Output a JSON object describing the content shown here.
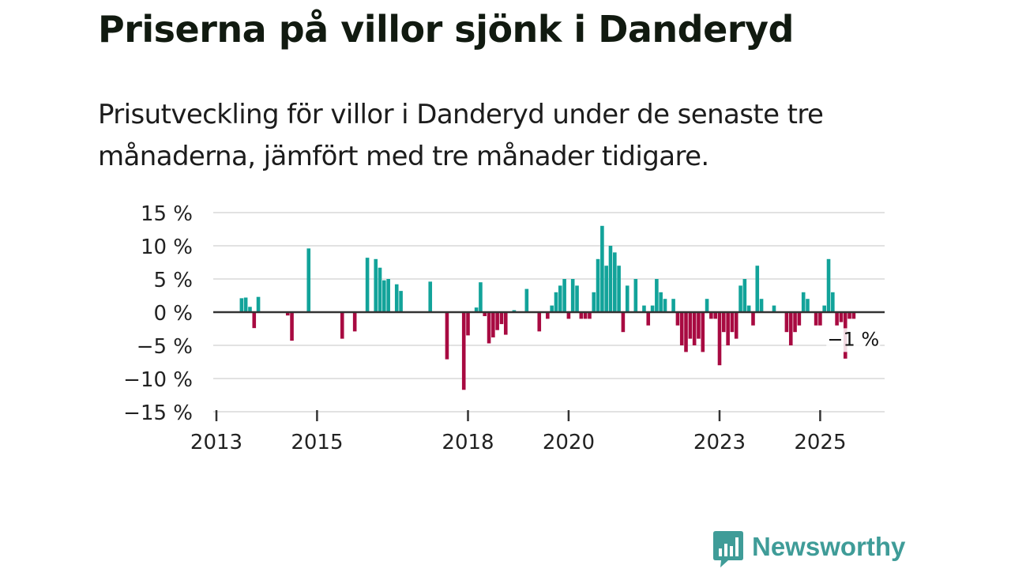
{
  "header": {
    "title": "Priserna på villor sjönk i Danderyd",
    "subtitle": "Prisutveckling för villor i Danderyd under de senaste tre månaderna, jämfört med tre månader tidigare."
  },
  "brand": {
    "name": "Newsworthy",
    "color": "#3f9c98"
  },
  "colors": {
    "positive": "#12a39a",
    "negative": "#a80a41",
    "grid": "#d9d9d9",
    "zero": "#333333"
  },
  "chart_data": {
    "type": "bar",
    "title": "Priserna på villor sjönk i Danderyd",
    "xlabel": "",
    "ylabel": "",
    "ylim": [
      -15,
      15
    ],
    "y_ticks": [
      15,
      10,
      5,
      0,
      -5,
      -10,
      -15
    ],
    "y_tick_labels": [
      "15 %",
      "10 %",
      "5 %",
      "0 %",
      "−5 %",
      "−10 %",
      "−15 %"
    ],
    "x_ticks": [
      2013,
      2015,
      2018,
      2020,
      2023,
      2025
    ],
    "x_tick_labels": [
      "2013",
      "2015",
      "2018",
      "2020",
      "2023",
      "2025"
    ],
    "x_range": [
      2013,
      2026.3
    ],
    "grid": true,
    "annotation": {
      "label": "−1 %",
      "x": 2025.5,
      "value": -1
    },
    "x": [
      2013.5,
      2013.583,
      2013.667,
      2013.75,
      2013.833,
      2014.417,
      2014.5,
      2014.833,
      2015.5,
      2015.75,
      2016.0,
      2016.167,
      2016.25,
      2016.333,
      2016.417,
      2016.583,
      2016.667,
      2017.25,
      2017.583,
      2017.917,
      2018.0,
      2018.167,
      2018.25,
      2018.333,
      2018.417,
      2018.5,
      2018.583,
      2018.667,
      2018.75,
      2018.917,
      2019.167,
      2019.417,
      2019.583,
      2019.667,
      2019.75,
      2019.833,
      2019.917,
      2020.0,
      2020.083,
      2020.167,
      2020.25,
      2020.333,
      2020.417,
      2020.5,
      2020.583,
      2020.667,
      2020.75,
      2020.833,
      2020.917,
      2021.0,
      2021.083,
      2021.167,
      2021.333,
      2021.5,
      2021.583,
      2021.667,
      2021.75,
      2021.833,
      2021.917,
      2022.083,
      2022.167,
      2022.25,
      2022.333,
      2022.417,
      2022.5,
      2022.583,
      2022.667,
      2022.75,
      2022.833,
      2022.917,
      2023.0,
      2023.083,
      2023.167,
      2023.25,
      2023.333,
      2023.417,
      2023.5,
      2023.583,
      2023.667,
      2023.75,
      2023.833,
      2024.083,
      2024.333,
      2024.417,
      2024.5,
      2024.583,
      2024.667,
      2024.75,
      2024.917,
      2025.0,
      2025.083,
      2025.167,
      2025.25,
      2025.333,
      2025.417,
      2025.5,
      2025.583,
      2025.667
    ],
    "values": [
      2.1,
      2.2,
      0.8,
      -2.4,
      2.3,
      -0.5,
      -4.3,
      9.6,
      -4.0,
      -2.9,
      8.2,
      8.0,
      6.7,
      4.8,
      5.0,
      4.2,
      3.2,
      4.6,
      -7.1,
      -11.7,
      -3.5,
      0.7,
      4.5,
      -0.6,
      -4.7,
      -3.8,
      -2.7,
      -1.8,
      -3.4,
      0.3,
      3.5,
      -2.9,
      -1.0,
      1.0,
      3.0,
      4.0,
      5.0,
      -1.0,
      5.0,
      4.0,
      -1.0,
      -1.0,
      -1.0,
      3.0,
      8.0,
      13.0,
      7.0,
      10.0,
      9.0,
      7.0,
      -3.0,
      4.0,
      5.0,
      1.0,
      -2.0,
      1.0,
      5.0,
      3.0,
      2.0,
      2.0,
      -2.0,
      -5.0,
      -6.0,
      -4.0,
      -5.0,
      -4.0,
      -6.0,
      2.0,
      -1.0,
      -1.0,
      -8.0,
      -3.0,
      -5.0,
      -3.0,
      -4.0,
      4.0,
      5.0,
      1.0,
      -2.0,
      7.0,
      2.0,
      1.0,
      -3.0,
      -5.0,
      -3.0,
      -2.0,
      3.0,
      2.0,
      -2.0,
      -2.0,
      1.0,
      8.0,
      3.0,
      -2.0,
      -1.5,
      -7.0,
      -1.0,
      -1.0
    ]
  }
}
